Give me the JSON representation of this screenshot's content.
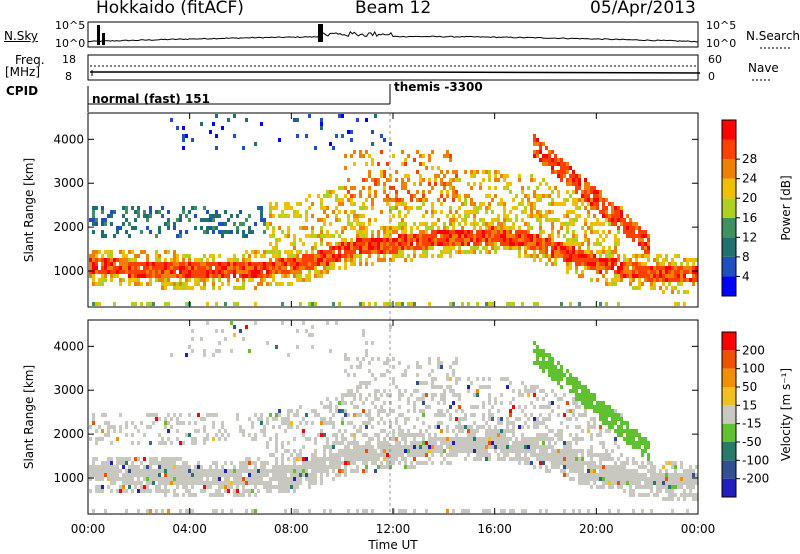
{
  "header": {
    "station": "Hokkaido (fitACF)",
    "beam": "Beam 12",
    "date": "05/Apr/2013"
  },
  "summary": {
    "nsky_label": "N.Sky",
    "nsearch_label": "N.Search",
    "nsky_ticks": [
      "10^5",
      "10^0"
    ],
    "nsearch_ticks": [
      "10^5",
      "10^0"
    ],
    "freq_label": [
      "Freq.",
      "[MHz]"
    ],
    "freq_ticks": [
      "18",
      "8"
    ],
    "nave_label": "Nave",
    "nave_ticks": [
      "60",
      "0"
    ],
    "cpid_label": "CPID",
    "cpid_modes": [
      "normal (fast) 151",
      "themis -3300"
    ]
  },
  "chart_data": [
    {
      "type": "heatmap",
      "title": "Power",
      "ylabel": "Slant Range [km]",
      "xlabel": "Time UT",
      "x_ticks": [
        "00:00",
        "04:00",
        "08:00",
        "12:00",
        "16:00",
        "20:00",
        "00:00"
      ],
      "y_ticks": [
        1000,
        2000,
        3000,
        4000
      ],
      "ylim": [
        180,
        4600
      ],
      "colorbar": {
        "label": "Power [dB]",
        "ticks": [
          "4",
          "8",
          "12",
          "16",
          "20",
          "24",
          "28"
        ],
        "colors": [
          "#0000ff",
          "#2050c0",
          "#207070",
          "#409060",
          "#b0d020",
          "#f0c000",
          "#f08000",
          "#ff4000",
          "#ff0000"
        ]
      },
      "series": [
        {
          "values": [
            [
              0,
              1150
            ],
            [
              2,
              1100
            ],
            [
              4,
              1050
            ],
            [
              6,
              1050
            ],
            [
              8,
              1150
            ],
            [
              9.5,
              1400
            ],
            [
              10.5,
              1600
            ],
            [
              12,
              1650
            ],
            [
              14,
              1800
            ],
            [
              16,
              1850
            ],
            [
              17,
              1800
            ],
            [
              18,
              1600
            ],
            [
              20,
              1200
            ],
            [
              22,
              1000
            ],
            [
              24,
              950
            ]
          ]
        }
      ]
    },
    {
      "type": "heatmap",
      "title": "Velocity",
      "ylabel": "Slant Range [km]",
      "xlabel": "Time UT",
      "x_ticks": [
        "00:00",
        "04:00",
        "08:00",
        "12:00",
        "16:00",
        "20:00",
        "00:00"
      ],
      "y_ticks": [
        1000,
        2000,
        3000,
        4000
      ],
      "ylim": [
        180,
        4600
      ],
      "colorbar": {
        "label": "Velocity [m s⁻¹]",
        "ticks": [
          "200",
          "100",
          "50",
          "15",
          "-15",
          "-50",
          "-100",
          "-200"
        ],
        "colors": [
          "#2020c0",
          "#305090",
          "#2a7a6a",
          "#60c030",
          "#c8c8c0",
          "#f0c020",
          "#f09000",
          "#f05000",
          "#ff0000"
        ]
      }
    }
  ],
  "time_label": "Time UT"
}
